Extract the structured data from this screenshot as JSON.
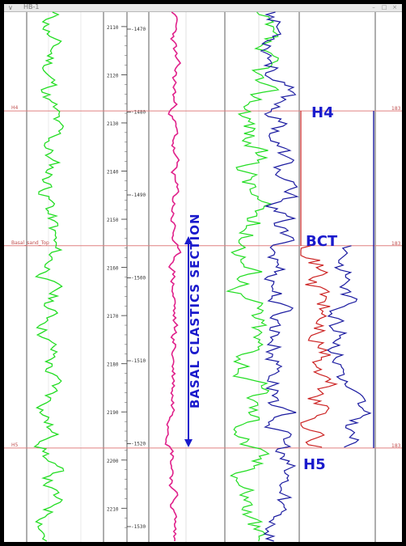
{
  "window": {
    "title": "HB-1",
    "menu_icon": "chevron-down-icon",
    "buttons": [
      "minimize-icon",
      "maximize-icon",
      "close-icon"
    ]
  },
  "chart_data": {
    "type": "line",
    "title": "",
    "depth_axis": {
      "label": "",
      "ticks": [
        "2110",
        "2120",
        "2130",
        "2140",
        "2150",
        "2160",
        "2170",
        "2180",
        "2190",
        "2200",
        "2210"
      ],
      "range": [
        2107,
        2217
      ]
    },
    "tvd_axis": {
      "label": "",
      "ticks": [
        "-1470",
        "-1480",
        "-1490",
        "-1500",
        "-1510",
        "-1520",
        "-1530"
      ]
    },
    "markers": [
      {
        "label": "H4",
        "left_label": "H4",
        "right_label": "183",
        "depth": 2127.5
      },
      {
        "label": "BCT",
        "left_label": "Basal_sand_Top",
        "right_label": "183",
        "depth": 2155.5
      },
      {
        "label": "H5",
        "left_label": "H5",
        "right_label": "183",
        "depth": 2197.5
      }
    ],
    "annotation": "BASAL CLASTICS SECTION",
    "series": []
  },
  "colors": {
    "gamma": "#22dd22",
    "magenta": "#e0208a",
    "blue": "#1a1aa0",
    "red": "#cc2222",
    "marker_line": "#e08080",
    "label": "#1a1acc"
  }
}
